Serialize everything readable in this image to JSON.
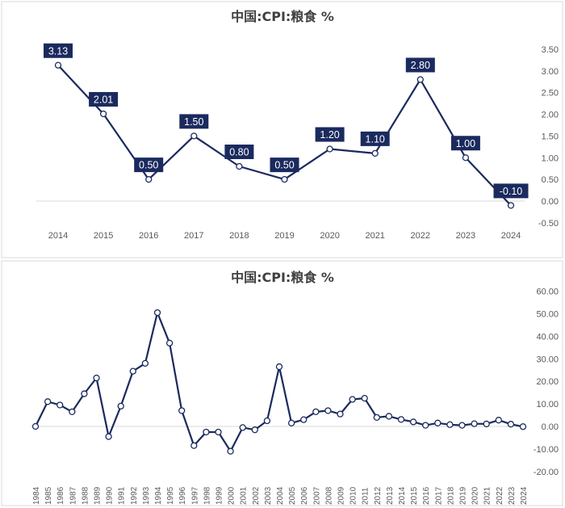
{
  "chart_data": [
    {
      "type": "line",
      "title": "中国:CPI:粮食 %",
      "categories": [
        "2014",
        "2015",
        "2016",
        "2017",
        "2018",
        "2019",
        "2020",
        "2021",
        "2022",
        "2023",
        "2024"
      ],
      "values": [
        3.13,
        2.01,
        0.5,
        1.5,
        0.8,
        0.5,
        1.2,
        1.1,
        2.8,
        1.0,
        -0.1
      ],
      "data_labels": [
        "3.13",
        "2.01",
        "0.50",
        "1.50",
        "0.80",
        "0.50",
        "1.20",
        "1.10",
        "2.80",
        "1.00",
        "-0.10"
      ],
      "ytick_labels": [
        "3.50",
        "3.00",
        "2.50",
        "2.00",
        "1.50",
        "1.00",
        "0.50",
        "0.00",
        "-0.50"
      ],
      "ylim": [
        -0.5,
        3.5
      ],
      "xlabel": "",
      "ylabel": "",
      "y_axis_side": "right",
      "grid": false,
      "legend": "none"
    },
    {
      "type": "line",
      "title": "中国:CPI:粮食 %",
      "categories": [
        "1984",
        "1985",
        "1986",
        "1987",
        "1988",
        "1989",
        "1990",
        "1991",
        "1992",
        "1993",
        "1994",
        "1995",
        "1996",
        "1997",
        "1998",
        "1999",
        "2000",
        "2001",
        "2002",
        "2003",
        "2004",
        "2005",
        "2006",
        "2007",
        "2008",
        "2009",
        "2010",
        "2011",
        "2012",
        "2013",
        "2014",
        "2015",
        "2016",
        "2017",
        "2018",
        "2019",
        "2020",
        "2021",
        "2022",
        "2023",
        "2024"
      ],
      "values": [
        0,
        11,
        9.5,
        6.5,
        14.5,
        21.5,
        -4.5,
        9,
        24.5,
        28,
        50.5,
        37,
        7,
        -8.5,
        -2.5,
        -2.5,
        -11,
        -0.5,
        -1.5,
        2.5,
        26.5,
        1.5,
        3,
        6.5,
        7,
        5.5,
        12,
        12.5,
        4,
        4.5,
        3.1,
        2.0,
        0.5,
        1.5,
        0.8,
        0.5,
        1.2,
        1.1,
        2.8,
        1.0,
        -0.1
      ],
      "ytick_labels": [
        "60.00",
        "50.00",
        "40.00",
        "30.00",
        "20.00",
        "10.00",
        "0.00",
        "-10.00",
        "-20.00"
      ],
      "ylim": [
        -20,
        60
      ],
      "xlabel": "",
      "ylabel": "",
      "y_axis_side": "right",
      "grid": false,
      "legend": "none"
    }
  ],
  "colors": {
    "line": "#1b2a5e",
    "label_bg": "#1b2a5e",
    "axis": "#d9d9d9",
    "marker_fill": "#ffffff"
  }
}
